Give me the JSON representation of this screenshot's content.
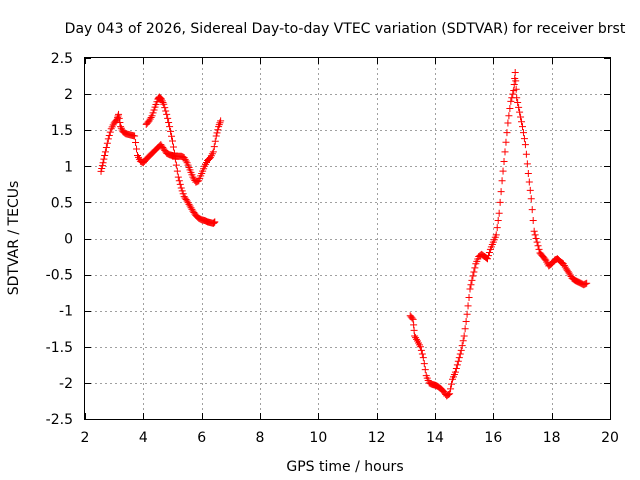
{
  "chart_data": {
    "type": "scatter",
    "title": "Day 043 of 2026, Sidereal Day-to-day VTEC variation (SDTVAR) for receiver brst",
    "xlabel": "GPS time / hours",
    "ylabel": "SDTVAR / TECUs",
    "xlim": [
      2,
      20
    ],
    "ylim": [
      -2.5,
      2.5
    ],
    "x_ticks": [
      2,
      4,
      6,
      8,
      10,
      12,
      14,
      16,
      18,
      20
    ],
    "y_ticks": [
      2.5,
      2,
      1.5,
      1,
      0.5,
      0,
      -0.5,
      -1,
      -1.5,
      -2,
      -2.5
    ],
    "x_tick_labels": [
      "2",
      "4",
      "6",
      "8",
      "10",
      "12",
      "14",
      "16",
      "18",
      "20"
    ],
    "y_tick_labels": [
      "2.5",
      "2",
      "1.5",
      "1",
      "0.5",
      "0",
      "-0.5",
      "-1",
      "-1.5",
      "-2",
      "-2.5"
    ],
    "grid": true,
    "marker": "+",
    "series_color": "#ff0000",
    "series": [
      {
        "name": "segment-1",
        "points": [
          [
            2.55,
            0.93
          ],
          [
            2.62,
            1.05
          ],
          [
            2.7,
            1.2
          ],
          [
            2.8,
            1.38
          ],
          [
            2.9,
            1.52
          ],
          [
            3.0,
            1.6
          ],
          [
            3.1,
            1.65
          ],
          [
            3.15,
            1.72
          ],
          [
            3.22,
            1.55
          ],
          [
            3.3,
            1.48
          ],
          [
            3.4,
            1.45
          ],
          [
            3.5,
            1.44
          ],
          [
            3.6,
            1.43
          ],
          [
            3.7,
            1.42
          ],
          [
            3.8,
            1.15
          ],
          [
            3.9,
            1.07
          ],
          [
            4.0,
            1.05
          ],
          [
            4.1,
            1.1
          ],
          [
            4.2,
            1.14
          ],
          [
            4.3,
            1.18
          ],
          [
            4.4,
            1.22
          ],
          [
            4.5,
            1.26
          ],
          [
            4.6,
            1.3
          ],
          [
            4.7,
            1.24
          ],
          [
            4.8,
            1.18
          ],
          [
            4.9,
            1.16
          ],
          [
            5.0,
            1.15
          ],
          [
            5.1,
            1.14
          ],
          [
            5.2,
            1.14
          ],
          [
            5.3,
            1.14
          ],
          [
            5.4,
            1.12
          ],
          [
            5.5,
            1.05
          ],
          [
            5.6,
            0.95
          ],
          [
            5.7,
            0.85
          ],
          [
            5.8,
            0.78
          ],
          [
            5.9,
            0.8
          ],
          [
            6.0,
            0.9
          ],
          [
            6.1,
            1.0
          ],
          [
            6.2,
            1.08
          ],
          [
            6.3,
            1.12
          ],
          [
            6.4,
            1.2
          ],
          [
            6.5,
            1.42
          ],
          [
            6.58,
            1.55
          ],
          [
            6.65,
            1.63
          ]
        ]
      },
      {
        "name": "segment-2",
        "points": [
          [
            4.1,
            1.58
          ],
          [
            4.2,
            1.63
          ],
          [
            4.3,
            1.7
          ],
          [
            4.4,
            1.82
          ],
          [
            4.5,
            1.93
          ],
          [
            4.55,
            1.96
          ],
          [
            4.62,
            1.93
          ],
          [
            4.7,
            1.86
          ],
          [
            4.8,
            1.72
          ],
          [
            4.9,
            1.55
          ],
          [
            5.0,
            1.35
          ],
          [
            5.1,
            1.1
          ],
          [
            5.2,
            0.85
          ],
          [
            5.3,
            0.7
          ],
          [
            5.4,
            0.58
          ],
          [
            5.5,
            0.52
          ],
          [
            5.6,
            0.45
          ],
          [
            5.7,
            0.38
          ],
          [
            5.8,
            0.32
          ],
          [
            5.9,
            0.28
          ],
          [
            6.0,
            0.26
          ],
          [
            6.1,
            0.25
          ],
          [
            6.2,
            0.23
          ],
          [
            6.3,
            0.22
          ],
          [
            6.4,
            0.21
          ],
          [
            6.45,
            0.23
          ]
        ]
      },
      {
        "name": "segment-3",
        "points": [
          [
            13.15,
            -1.07
          ],
          [
            13.25,
            -1.12
          ],
          [
            13.3,
            -1.35
          ],
          [
            13.4,
            -1.42
          ],
          [
            13.5,
            -1.5
          ],
          [
            13.6,
            -1.65
          ],
          [
            13.7,
            -1.9
          ],
          [
            13.8,
            -2.0
          ],
          [
            13.9,
            -2.02
          ],
          [
            14.0,
            -2.03
          ],
          [
            14.1,
            -2.05
          ],
          [
            14.2,
            -2.08
          ],
          [
            14.3,
            -2.12
          ],
          [
            14.4,
            -2.18
          ],
          [
            14.5,
            -2.15
          ],
          [
            14.6,
            -1.95
          ],
          [
            14.7,
            -1.85
          ],
          [
            14.8,
            -1.7
          ],
          [
            14.9,
            -1.55
          ],
          [
            15.0,
            -1.35
          ],
          [
            15.1,
            -1.05
          ],
          [
            15.2,
            -0.7
          ],
          [
            15.3,
            -0.52
          ],
          [
            15.4,
            -0.35
          ],
          [
            15.5,
            -0.25
          ],
          [
            15.6,
            -0.22
          ],
          [
            15.7,
            -0.25
          ],
          [
            15.8,
            -0.28
          ],
          [
            15.9,
            -0.15
          ],
          [
            16.0,
            -0.05
          ],
          [
            16.1,
            0.05
          ],
          [
            16.2,
            0.35
          ],
          [
            16.3,
            0.8
          ],
          [
            16.4,
            1.2
          ],
          [
            16.5,
            1.6
          ],
          [
            16.6,
            1.9
          ],
          [
            16.7,
            2.05
          ],
          [
            16.75,
            2.3
          ],
          [
            16.8,
            1.95
          ],
          [
            16.9,
            1.75
          ],
          [
            17.0,
            1.55
          ],
          [
            17.1,
            1.3
          ],
          [
            17.2,
            0.9
          ],
          [
            17.3,
            0.55
          ],
          [
            17.4,
            0.1
          ],
          [
            17.5,
            -0.05
          ],
          [
            17.6,
            -0.2
          ],
          [
            17.7,
            -0.25
          ],
          [
            17.8,
            -0.3
          ],
          [
            17.9,
            -0.38
          ],
          [
            18.0,
            -0.35
          ],
          [
            18.1,
            -0.3
          ],
          [
            18.2,
            -0.28
          ],
          [
            18.3,
            -0.32
          ],
          [
            18.4,
            -0.35
          ],
          [
            18.5,
            -0.42
          ],
          [
            18.6,
            -0.48
          ],
          [
            18.7,
            -0.55
          ],
          [
            18.8,
            -0.58
          ],
          [
            18.9,
            -0.6
          ],
          [
            19.0,
            -0.62
          ],
          [
            19.1,
            -0.64
          ],
          [
            19.2,
            -0.62
          ]
        ]
      }
    ]
  }
}
